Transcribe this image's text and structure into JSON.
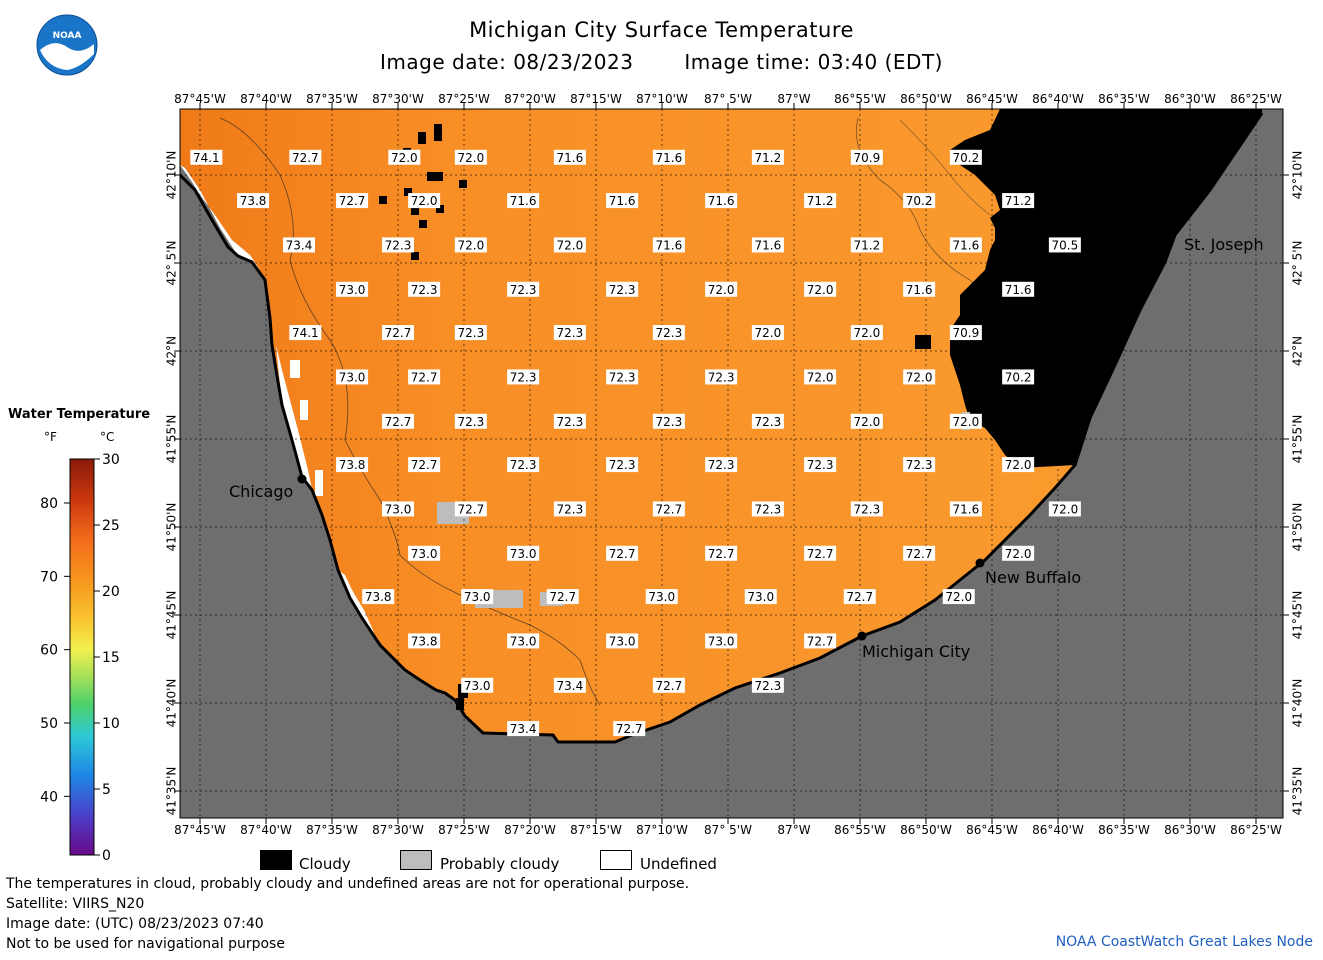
{
  "header": {
    "title": "Michigan City Surface Temperature",
    "image_date": "Image date: 08/23/2023",
    "image_time": "Image time: 03:40 (EDT)"
  },
  "logo": {
    "text": "NOAA",
    "icon": "noaa-logo-icon",
    "color": "#1a75c9"
  },
  "map": {
    "lon_labels": [
      "87°45'W",
      "87°40'W",
      "87°35'W",
      "87°30'W",
      "87°25'W",
      "87°20'W",
      "87°15'W",
      "87°10'W",
      "87° 5'W",
      "87°W",
      "86°55'W",
      "86°50'W",
      "86°45'W",
      "86°40'W",
      "86°35'W",
      "86°30'W",
      "86°25'W"
    ],
    "lat_labels": [
      "42°10'N",
      "42° 5'N",
      "42°N",
      "41°55'N",
      "41°50'N",
      "41°45'N",
      "41°40'N",
      "41°35'N"
    ],
    "colors": {
      "water": "#f99a2a",
      "water_dark": "#f07a18",
      "land": "#6e6e6e",
      "cloud": "#000000",
      "probably_cloudy": "#bdbdbd",
      "undefined": "#ffffff"
    },
    "cities": [
      {
        "name": "Chicago"
      },
      {
        "name": "Michigan City"
      },
      {
        "name": "New Buffalo"
      },
      {
        "name": "St. Joseph"
      }
    ],
    "temperatures": [
      {
        "v": "74.1",
        "lon": -87.742,
        "lat": 42.183
      },
      {
        "v": "72.7",
        "lon": -87.617,
        "lat": 42.183
      },
      {
        "v": "72.0",
        "lon": -87.492,
        "lat": 42.183
      },
      {
        "v": "72.0",
        "lon": -87.408,
        "lat": 42.183
      },
      {
        "v": "71.6",
        "lon": -87.283,
        "lat": 42.183
      },
      {
        "v": "71.6",
        "lon": -87.158,
        "lat": 42.183
      },
      {
        "v": "71.2",
        "lon": -87.033,
        "lat": 42.183
      },
      {
        "v": "70.9",
        "lon": -86.908,
        "lat": 42.183
      },
      {
        "v": "70.2",
        "lon": -86.783,
        "lat": 42.183
      },
      {
        "v": "73.8",
        "lon": -87.683,
        "lat": 42.142
      },
      {
        "v": "72.7",
        "lon": -87.558,
        "lat": 42.142
      },
      {
        "v": "72.0",
        "lon": -87.467,
        "lat": 42.142
      },
      {
        "v": "71.6",
        "lon": -87.342,
        "lat": 42.142
      },
      {
        "v": "71.6",
        "lon": -87.217,
        "lat": 42.142
      },
      {
        "v": "71.6",
        "lon": -87.092,
        "lat": 42.142
      },
      {
        "v": "71.2",
        "lon": -86.967,
        "lat": 42.142
      },
      {
        "v": "70.2",
        "lon": -86.842,
        "lat": 42.142
      },
      {
        "v": "71.2",
        "lon": -86.717,
        "lat": 42.142
      },
      {
        "v": "73.4",
        "lon": -87.625,
        "lat": 42.1
      },
      {
        "v": "72.3",
        "lon": -87.5,
        "lat": 42.1
      },
      {
        "v": "72.0",
        "lon": -87.408,
        "lat": 42.1
      },
      {
        "v": "72.0",
        "lon": -87.283,
        "lat": 42.1
      },
      {
        "v": "71.6",
        "lon": -87.158,
        "lat": 42.1
      },
      {
        "v": "71.6",
        "lon": -87.033,
        "lat": 42.1
      },
      {
        "v": "71.2",
        "lon": -86.908,
        "lat": 42.1
      },
      {
        "v": "71.6",
        "lon": -86.783,
        "lat": 42.1
      },
      {
        "v": "70.5",
        "lon": -86.658,
        "lat": 42.1
      },
      {
        "v": "73.0",
        "lon": -87.558,
        "lat": 42.058
      },
      {
        "v": "72.3",
        "lon": -87.467,
        "lat": 42.058
      },
      {
        "v": "72.3",
        "lon": -87.342,
        "lat": 42.058
      },
      {
        "v": "72.3",
        "lon": -87.217,
        "lat": 42.058
      },
      {
        "v": "72.0",
        "lon": -87.092,
        "lat": 42.058
      },
      {
        "v": "72.0",
        "lon": -86.967,
        "lat": 42.058
      },
      {
        "v": "71.6",
        "lon": -86.842,
        "lat": 42.058
      },
      {
        "v": "71.6",
        "lon": -86.717,
        "lat": 42.058
      },
      {
        "v": "74.1",
        "lon": -87.617,
        "lat": 42.017
      },
      {
        "v": "72.7",
        "lon": -87.5,
        "lat": 42.017
      },
      {
        "v": "72.3",
        "lon": -87.408,
        "lat": 42.017
      },
      {
        "v": "72.3",
        "lon": -87.283,
        "lat": 42.017
      },
      {
        "v": "72.3",
        "lon": -87.158,
        "lat": 42.017
      },
      {
        "v": "72.0",
        "lon": -87.033,
        "lat": 42.017
      },
      {
        "v": "72.0",
        "lon": -86.908,
        "lat": 42.017
      },
      {
        "v": "70.9",
        "lon": -86.783,
        "lat": 42.017
      },
      {
        "v": "73.0",
        "lon": -87.558,
        "lat": 41.975
      },
      {
        "v": "72.7",
        "lon": -87.467,
        "lat": 41.975
      },
      {
        "v": "72.3",
        "lon": -87.342,
        "lat": 41.975
      },
      {
        "v": "72.3",
        "lon": -87.217,
        "lat": 41.975
      },
      {
        "v": "72.3",
        "lon": -87.092,
        "lat": 41.975
      },
      {
        "v": "72.0",
        "lon": -86.967,
        "lat": 41.975
      },
      {
        "v": "72.0",
        "lon": -86.842,
        "lat": 41.975
      },
      {
        "v": "70.2",
        "lon": -86.717,
        "lat": 41.975
      },
      {
        "v": "72.7",
        "lon": -87.5,
        "lat": 41.933
      },
      {
        "v": "72.3",
        "lon": -87.408,
        "lat": 41.933
      },
      {
        "v": "72.3",
        "lon": -87.283,
        "lat": 41.933
      },
      {
        "v": "72.3",
        "lon": -87.158,
        "lat": 41.933
      },
      {
        "v": "72.3",
        "lon": -87.033,
        "lat": 41.933
      },
      {
        "v": "72.0",
        "lon": -86.908,
        "lat": 41.933
      },
      {
        "v": "72.0",
        "lon": -86.783,
        "lat": 41.933
      },
      {
        "v": "73.8",
        "lon": -87.558,
        "lat": 41.892
      },
      {
        "v": "72.7",
        "lon": -87.467,
        "lat": 41.892
      },
      {
        "v": "72.3",
        "lon": -87.342,
        "lat": 41.892
      },
      {
        "v": "72.3",
        "lon": -87.217,
        "lat": 41.892
      },
      {
        "v": "72.3",
        "lon": -87.092,
        "lat": 41.892
      },
      {
        "v": "72.3",
        "lon": -86.967,
        "lat": 41.892
      },
      {
        "v": "72.3",
        "lon": -86.842,
        "lat": 41.892
      },
      {
        "v": "72.0",
        "lon": -86.717,
        "lat": 41.892
      },
      {
        "v": "73.0",
        "lon": -87.5,
        "lat": 41.85
      },
      {
        "v": "72.7",
        "lon": -87.408,
        "lat": 41.85
      },
      {
        "v": "72.3",
        "lon": -87.283,
        "lat": 41.85
      },
      {
        "v": "72.7",
        "lon": -87.158,
        "lat": 41.85
      },
      {
        "v": "72.3",
        "lon": -87.033,
        "lat": 41.85
      },
      {
        "v": "72.3",
        "lon": -86.908,
        "lat": 41.85
      },
      {
        "v": "71.6",
        "lon": -86.783,
        "lat": 41.85
      },
      {
        "v": "72.0",
        "lon": -86.658,
        "lat": 41.85
      },
      {
        "v": "73.0",
        "lon": -87.467,
        "lat": 41.808
      },
      {
        "v": "73.0",
        "lon": -87.342,
        "lat": 41.808
      },
      {
        "v": "72.7",
        "lon": -87.217,
        "lat": 41.808
      },
      {
        "v": "72.7",
        "lon": -87.092,
        "lat": 41.808
      },
      {
        "v": "72.7",
        "lon": -86.967,
        "lat": 41.808
      },
      {
        "v": "72.7",
        "lon": -86.842,
        "lat": 41.808
      },
      {
        "v": "72.0",
        "lon": -86.717,
        "lat": 41.808
      },
      {
        "v": "73.8",
        "lon": -87.525,
        "lat": 41.767
      },
      {
        "v": "73.0",
        "lon": -87.4,
        "lat": 41.767
      },
      {
        "v": "72.7",
        "lon": -87.292,
        "lat": 41.767
      },
      {
        "v": "73.0",
        "lon": -87.167,
        "lat": 41.767
      },
      {
        "v": "73.0",
        "lon": -87.042,
        "lat": 41.767
      },
      {
        "v": "72.7",
        "lon": -86.917,
        "lat": 41.767
      },
      {
        "v": "72.0",
        "lon": -86.792,
        "lat": 41.767
      },
      {
        "v": "73.8",
        "lon": -87.467,
        "lat": 41.725
      },
      {
        "v": "73.0",
        "lon": -87.342,
        "lat": 41.725
      },
      {
        "v": "73.0",
        "lon": -87.217,
        "lat": 41.725
      },
      {
        "v": "73.0",
        "lon": -87.092,
        "lat": 41.725
      },
      {
        "v": "72.7",
        "lon": -86.967,
        "lat": 41.725
      },
      {
        "v": "73.0",
        "lon": -87.4,
        "lat": 41.683
      },
      {
        "v": "73.4",
        "lon": -87.283,
        "lat": 41.683
      },
      {
        "v": "72.7",
        "lon": -87.158,
        "lat": 41.683
      },
      {
        "v": "72.3",
        "lon": -87.033,
        "lat": 41.683
      },
      {
        "v": "73.4",
        "lon": -87.342,
        "lat": 41.642
      },
      {
        "v": "72.7",
        "lon": -87.208,
        "lat": 41.642
      }
    ]
  },
  "colorbar": {
    "title": "Water Temperature",
    "unit_f": "°F",
    "unit_c": "°C",
    "f_ticks": [
      "80",
      "70",
      "60",
      "50",
      "40"
    ],
    "c_ticks": [
      "30",
      "25",
      "20",
      "15",
      "10",
      "5",
      "0"
    ]
  },
  "legend": {
    "cloudy": "Cloudy",
    "probably_cloudy": "Probably cloudy",
    "undefined": "Undefined"
  },
  "footer": {
    "line1": "The temperatures in cloud, probably cloudy and undefined areas are not for operational purpose.",
    "line2": "Satellite: VIIRS_N20",
    "line3": "Image date: (UTC) 08/23/2023  07:40",
    "line4": "Not to be used for navigational purpose",
    "credit": "NOAA CoastWatch Great Lakes Node"
  }
}
